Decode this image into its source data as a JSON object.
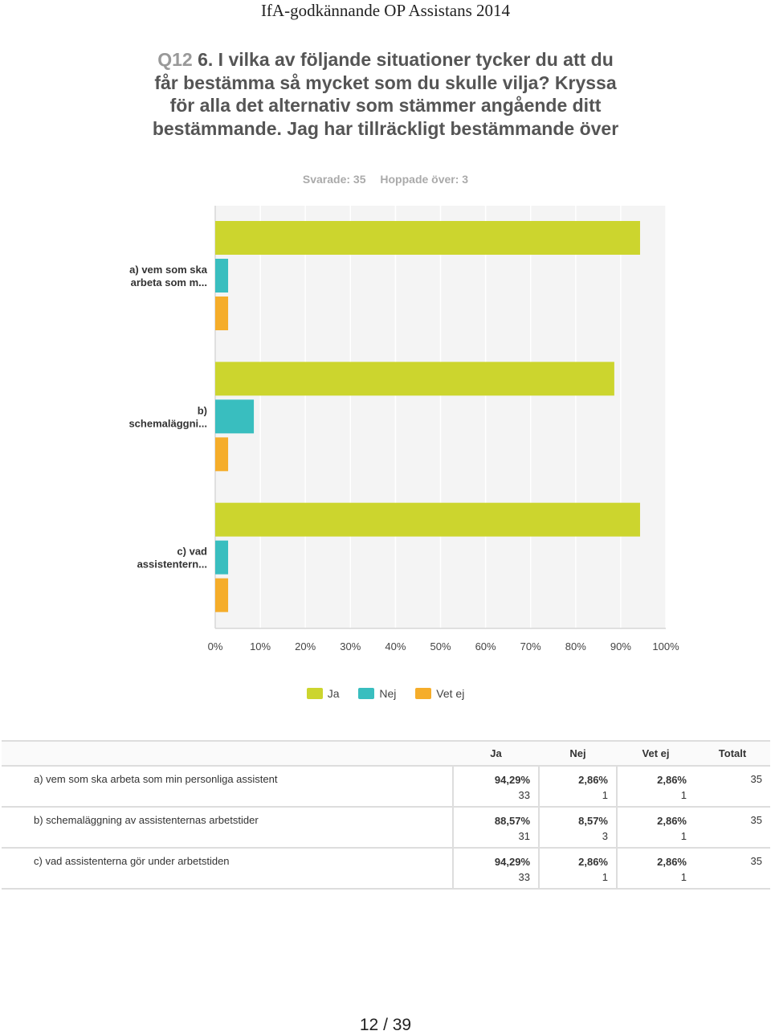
{
  "header": {
    "doc_title": "IfA-godkännande OP Assistans 2014"
  },
  "question": {
    "number": "Q12",
    "text": "6. I vilka av följande situationer tycker du att du får bestämma så mycket som du skulle vilja? Kryssa för alla det alternativ som stämmer angående ditt bestämmande. Jag har tillräckligt bestämmande över",
    "answered_label": "Svarade: 35",
    "skipped_label": "Hoppade över: 3"
  },
  "chart_data": {
    "type": "bar",
    "orientation": "horizontal",
    "categories": [
      [
        "a) vem som ska",
        "arbeta som m..."
      ],
      [
        "b)",
        "schemaläggni..."
      ],
      [
        "c) vad",
        "assistentern..."
      ]
    ],
    "series": [
      {
        "name": "Ja",
        "color": "#ccd52e",
        "values": [
          94.29,
          88.57,
          94.29
        ]
      },
      {
        "name": "Nej",
        "color": "#39bebf",
        "values": [
          2.86,
          8.57,
          2.86
        ]
      },
      {
        "name": "Vet ej",
        "color": "#f5ad2a",
        "values": [
          2.86,
          2.86,
          2.86
        ]
      }
    ],
    "xticks": [
      "0%",
      "10%",
      "20%",
      "30%",
      "40%",
      "50%",
      "60%",
      "70%",
      "80%",
      "90%",
      "100%"
    ],
    "xlim": [
      0,
      100
    ],
    "grid": true,
    "legend_position": "bottom"
  },
  "legend": [
    {
      "label": "Ja",
      "color": "#ccd52e"
    },
    {
      "label": "Nej",
      "color": "#39bebf"
    },
    {
      "label": "Vet ej",
      "color": "#f5ad2a"
    }
  ],
  "table": {
    "headers": [
      "Ja",
      "Nej",
      "Vet ej",
      "Totalt"
    ],
    "rows": [
      {
        "label": "a) vem som ska arbeta som min personliga assistent",
        "ja_pct": "94,29%",
        "ja_n": "33",
        "nej_pct": "2,86%",
        "nej_n": "1",
        "vet_pct": "2,86%",
        "vet_n": "1",
        "total": "35"
      },
      {
        "label": "b) schemaläggning av assistenternas arbetstider",
        "ja_pct": "88,57%",
        "ja_n": "31",
        "nej_pct": "8,57%",
        "nej_n": "3",
        "vet_pct": "2,86%",
        "vet_n": "1",
        "total": "35"
      },
      {
        "label": "c) vad assistenterna gör under arbetstiden",
        "ja_pct": "94,29%",
        "ja_n": "33",
        "nej_pct": "2,86%",
        "nej_n": "1",
        "vet_pct": "2,86%",
        "vet_n": "1",
        "total": "35"
      }
    ]
  },
  "footer": {
    "page": "12 / 39"
  }
}
